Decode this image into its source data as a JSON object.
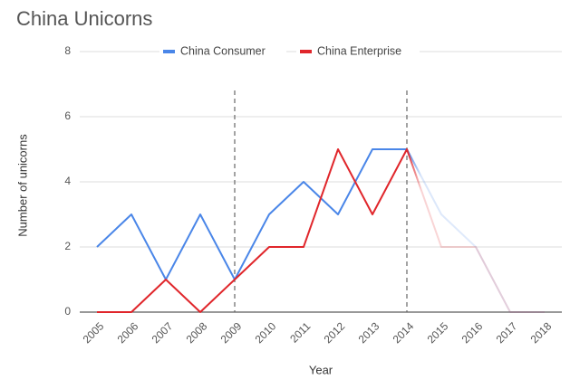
{
  "chart_data": {
    "type": "line",
    "title": "China Unicorns",
    "x_label": "Year",
    "y_label": "Number of unicorns",
    "categories": [
      "2005",
      "2006",
      "2007",
      "2008",
      "2009",
      "2010",
      "2011",
      "2012",
      "2013",
      "2014",
      "2015",
      "2016",
      "2017",
      "2018"
    ],
    "series": [
      {
        "name": "China Consumer",
        "color": "#4a86e8",
        "values": [
          2,
          3,
          1,
          3,
          1,
          3,
          4,
          3,
          5,
          5,
          3,
          2,
          0,
          0
        ]
      },
      {
        "name": "China Enterprise",
        "color": "#e0262b",
        "values": [
          0,
          0,
          1,
          0,
          1,
          2,
          2,
          5,
          3,
          5,
          2,
          2,
          0,
          0
        ]
      }
    ],
    "ylim": [
      0,
      8
    ],
    "yticks": [
      0,
      2,
      4,
      6,
      8
    ],
    "grid": true,
    "vlines": [
      "2009",
      "2014"
    ],
    "legend": "top"
  }
}
